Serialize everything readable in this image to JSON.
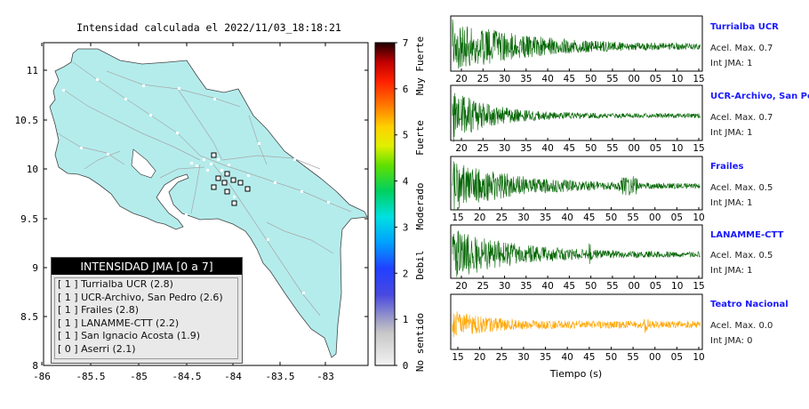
{
  "chart_data": [
    {
      "type": "map",
      "title": "Intensidad calculada el 2022/11/03_18:18:21",
      "xticks": [
        "-86",
        "-85.5",
        "-85",
        "-84.5",
        "-84",
        "-83.5",
        "-83"
      ],
      "yticks": [
        "8",
        "8.5",
        "9",
        "9.5",
        "10",
        "10.5",
        "11"
      ],
      "xlim": [
        -86.0,
        -82.5
      ],
      "ylim": [
        8.0,
        11.3
      ],
      "land_color": "#b4ecec",
      "colorbar": {
        "min": 0,
        "max": 7,
        "ticks": [
          "0",
          "1",
          "2",
          "3",
          "4",
          "5",
          "6",
          "7"
        ],
        "labels": [
          "No sentido",
          "Debil",
          "Moderado",
          "Fuerte",
          "Muy Fuerte"
        ]
      },
      "legend": {
        "title": "INTENSIDAD JMA [0 a 7]",
        "items": [
          "[ 1 ]  Turrialba UCR (2.8)",
          "[ 1 ]  UCR-Archivo, San Pedro (2.6)",
          "[ 1 ]  Frailes (2.8)",
          "[ 1 ]  LANAMME-CTT (2.2)",
          "[ 1 ]  San Ignacio Acosta (1.9)",
          "[ 0 ]  Aserri (2.1)"
        ]
      }
    },
    {
      "type": "line",
      "xlabel": "Tiempo (s)",
      "series": [
        {
          "name": "Turrialba UCR",
          "accel": "Acel. Max. 0.7",
          "jma": "Int JMA: 1",
          "ticks": [
            "20",
            "25",
            "30",
            "35",
            "40",
            "45",
            "50",
            "55",
            "00",
            "05",
            "10",
            "15"
          ],
          "color": "#006400"
        },
        {
          "name": "UCR-Archivo, San Pedro",
          "accel": "Acel. Max. 0.7",
          "jma": "Int JMA: 1",
          "ticks": [
            "20",
            "25",
            "30",
            "35",
            "40",
            "45",
            "50",
            "55",
            "00",
            "05",
            "10",
            "15"
          ],
          "color": "#006400"
        },
        {
          "name": "Frailes",
          "accel": "Acel. Max. 0.5",
          "jma": "Int JMA: 1",
          "ticks": [
            "15",
            "20",
            "25",
            "30",
            "35",
            "40",
            "45",
            "50",
            "55",
            "00",
            "05",
            "10"
          ],
          "color": "#006400"
        },
        {
          "name": "LANAMME-CTT",
          "accel": "Acel. Max. 0.5",
          "jma": "Int JMA: 1",
          "ticks": [
            "20",
            "25",
            "30",
            "35",
            "40",
            "45",
            "50",
            "55",
            "00",
            "05",
            "10",
            "15"
          ],
          "color": "#006400"
        },
        {
          "name": "Teatro Nacional",
          "accel": "Acel. Max. 0.0",
          "jma": "Int JMA: 0",
          "ticks": [
            "15",
            "20",
            "25",
            "30",
            "35",
            "40",
            "45",
            "50",
            "55",
            "00",
            "05",
            "10"
          ],
          "color": "#ffa500"
        }
      ]
    }
  ]
}
